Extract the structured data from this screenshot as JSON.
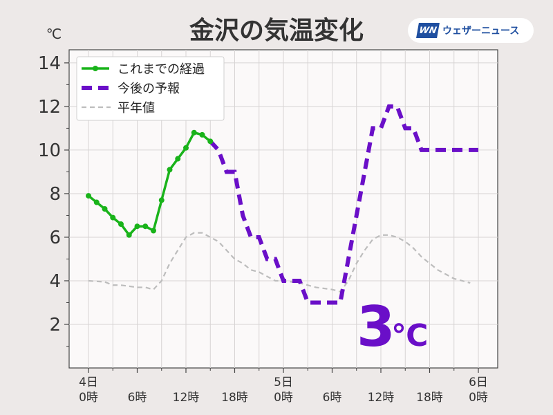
{
  "title": "金沢の気温変化",
  "unit": "℃",
  "brand": "ウェザーニュース",
  "brand_mark": "WN",
  "big_temp": "3",
  "big_unit": "℃",
  "colors": {
    "observed": "#19b31a",
    "forecast": "#6a0fc8",
    "normal": "#bdbdbd",
    "big_temp": "#6a0fc8",
    "plot_bg": "#fbf9f9",
    "brand": "#1f4fa0"
  },
  "chart_data": {
    "type": "line",
    "xlim": [
      0,
      48
    ],
    "ylim": [
      0,
      14.6
    ],
    "y_ticks": [
      2,
      4,
      6,
      8,
      10,
      12,
      14
    ],
    "x_ticks": [
      {
        "x": 0,
        "label": [
          "4日",
          "0時"
        ]
      },
      {
        "x": 6,
        "label": [
          "6時"
        ]
      },
      {
        "x": 12,
        "label": [
          "12時"
        ]
      },
      {
        "x": 18,
        "label": [
          "18時"
        ]
      },
      {
        "x": 24,
        "label": [
          "5日",
          "0時"
        ]
      },
      {
        "x": 30,
        "label": [
          "6時"
        ]
      },
      {
        "x": 36,
        "label": [
          "12時"
        ]
      },
      {
        "x": 42,
        "label": [
          "18時"
        ]
      },
      {
        "x": 48,
        "label": [
          "6日",
          "0時"
        ]
      }
    ],
    "legend": "top-left",
    "grid": true,
    "series": [
      {
        "name": "これまでの経過",
        "style": "solid-markers",
        "points": [
          [
            0,
            7.9
          ],
          [
            1,
            7.6
          ],
          [
            2,
            7.3
          ],
          [
            3,
            6.9
          ],
          [
            4,
            6.6
          ],
          [
            5,
            6.1
          ],
          [
            6,
            6.5
          ],
          [
            7,
            6.5
          ],
          [
            8,
            6.3
          ],
          [
            9,
            7.7
          ],
          [
            10,
            9.1
          ],
          [
            11,
            9.6
          ],
          [
            12,
            10.1
          ],
          [
            13,
            10.8
          ],
          [
            14,
            10.7
          ],
          [
            15,
            10.4
          ]
        ]
      },
      {
        "name": "今後の予報",
        "style": "dashed-thick",
        "points": [
          [
            15,
            10.4
          ],
          [
            16,
            10
          ],
          [
            17,
            9
          ],
          [
            18,
            9
          ],
          [
            19,
            7
          ],
          [
            20,
            6
          ],
          [
            21,
            6
          ],
          [
            22,
            5
          ],
          [
            23,
            5
          ],
          [
            24,
            4
          ],
          [
            26,
            4
          ],
          [
            27,
            3
          ],
          [
            30,
            3
          ],
          [
            31,
            3
          ],
          [
            35,
            11
          ],
          [
            36,
            11
          ],
          [
            37,
            12
          ],
          [
            38,
            12
          ],
          [
            39,
            11
          ],
          [
            40,
            11
          ],
          [
            41,
            10
          ],
          [
            45,
            10
          ],
          [
            48,
            10
          ]
        ]
      },
      {
        "name": "平年値",
        "style": "dashed-thin",
        "points": [
          [
            0,
            4
          ],
          [
            2,
            3.95
          ],
          [
            3,
            3.8
          ],
          [
            4,
            3.8
          ],
          [
            6,
            3.7
          ],
          [
            7,
            3.7
          ],
          [
            8,
            3.6
          ],
          [
            9,
            4
          ],
          [
            10,
            4.8
          ],
          [
            11,
            5.4
          ],
          [
            12,
            6
          ],
          [
            13,
            6.2
          ],
          [
            14,
            6.2
          ],
          [
            15,
            6
          ],
          [
            16,
            5.8
          ],
          [
            17,
            5.4
          ],
          [
            18,
            5
          ],
          [
            19,
            4.8
          ],
          [
            20,
            4.5
          ],
          [
            21,
            4.4
          ],
          [
            22,
            4.2
          ],
          [
            23,
            4
          ],
          [
            24,
            4
          ],
          [
            26,
            3.9
          ],
          [
            28,
            3.7
          ],
          [
            30,
            3.6
          ],
          [
            31,
            3.5
          ],
          [
            32,
            4
          ],
          [
            33,
            4.8
          ],
          [
            34,
            5.4
          ],
          [
            35,
            5.9
          ],
          [
            36,
            6.1
          ],
          [
            37,
            6.1
          ],
          [
            38,
            6
          ],
          [
            39,
            5.8
          ],
          [
            40,
            5.5
          ],
          [
            41,
            5.1
          ],
          [
            42,
            4.8
          ],
          [
            43,
            4.5
          ],
          [
            44,
            4.3
          ],
          [
            45,
            4.1
          ],
          [
            46,
            4
          ],
          [
            47,
            3.9
          ]
        ]
      }
    ]
  }
}
